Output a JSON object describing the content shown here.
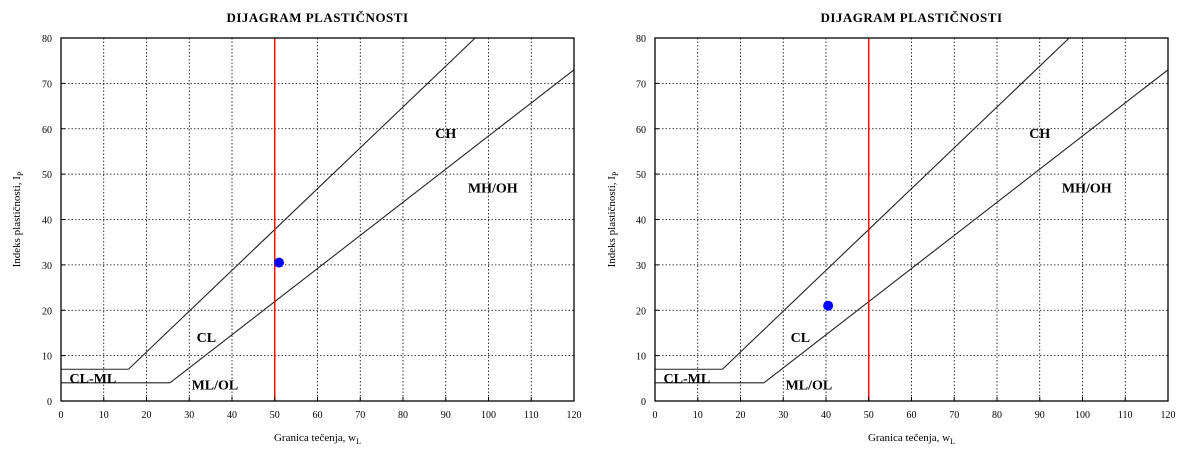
{
  "charts": [
    {
      "chart_data": {
        "type": "scatter",
        "title": "DIJAGRAM  PLASTIČNOSTI",
        "xlabel": "Granica tečenja, w",
        "xlabel_sub": "L",
        "ylabel": "Indeks plastičnosti, I",
        "ylabel_sub": "P",
        "xlim": [
          0,
          120
        ],
        "ylim": [
          0,
          80
        ],
        "xticks": [
          0,
          10,
          20,
          30,
          40,
          50,
          60,
          70,
          80,
          90,
          100,
          110,
          120
        ],
        "yticks": [
          0,
          10,
          20,
          30,
          40,
          50,
          60,
          70,
          80
        ],
        "grid": true,
        "vertical_line_x": 50,
        "point": {
          "x": 51,
          "y": 30.5
        },
        "zones": [
          "CH",
          "MH/OH",
          "CL",
          "CL-ML",
          "ML/OL"
        ]
      },
      "colors": {
        "point": "#0000ff",
        "vertical_line": "#ff0000"
      }
    },
    {
      "chart_data": {
        "type": "scatter",
        "title": "DIJAGRAM  PLASTIČNOSTI",
        "xlabel": "Granica tečenja, w",
        "xlabel_sub": "L",
        "ylabel": "Indeks plastičnosti, I",
        "ylabel_sub": "P",
        "xlim": [
          0,
          120
        ],
        "ylim": [
          0,
          80
        ],
        "xticks": [
          0,
          10,
          20,
          30,
          40,
          50,
          60,
          70,
          80,
          90,
          100,
          110,
          120
        ],
        "yticks": [
          0,
          10,
          20,
          30,
          40,
          50,
          60,
          70,
          80
        ],
        "grid": true,
        "vertical_line_x": 50,
        "point": {
          "x": 40.5,
          "y": 21
        },
        "zones": [
          "CH",
          "MH/OH",
          "CL",
          "CL-ML",
          "ML/OL"
        ]
      },
      "colors": {
        "point": "#0000ff",
        "vertical_line": "#ff0000"
      }
    }
  ]
}
